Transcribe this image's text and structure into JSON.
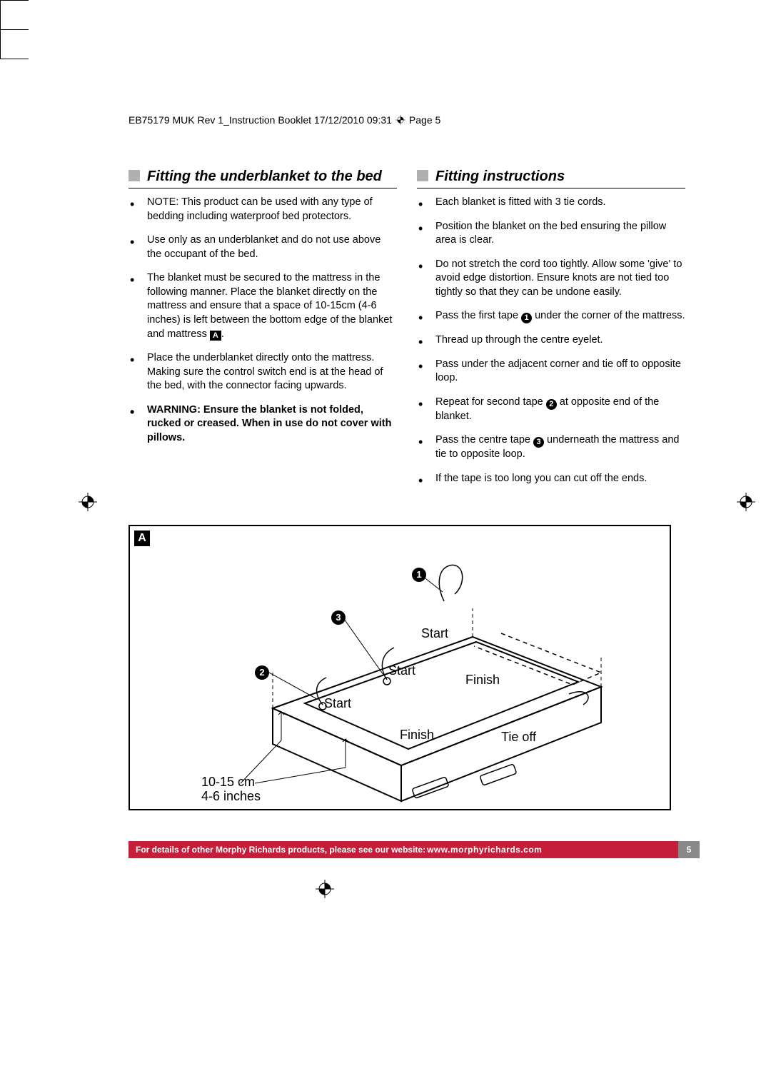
{
  "running_head": {
    "left": "EB75179 MUK Rev 1_Instruction Booklet  17/12/2010  09:31",
    "right": "Page 5"
  },
  "col1": {
    "heading": "Fitting the underblanket to the bed",
    "items": [
      {
        "text": "NOTE: This product can be used with any type of bedding including waterproof bed protectors."
      },
      {
        "text": "Use only as an underblanket and do not use above the occupant of the bed."
      },
      {
        "text_before": "The blanket must be secured to the mattress in the following manner. Place the blanket directly on the mattress and ensure that a space of 10-15cm (4-6 inches) is left between the bottom edge of the blanket and mattress ",
        "square": "A",
        "text_after": "."
      },
      {
        "text": "Place the underblanket directly onto the mattress. Making sure the control switch end is at the head of the bed, with the connector facing upwards."
      },
      {
        "text": "WARNING: Ensure the blanket is not folded, rucked or creased. When in use do not cover with pillows.",
        "bold": true
      }
    ]
  },
  "col2": {
    "heading": "Fitting instructions",
    "items": [
      {
        "text": "Each blanket is fitted with 3 tie cords."
      },
      {
        "text": "Position the blanket on the bed ensuring the pillow area is clear."
      },
      {
        "text": "Do not stretch the cord too tightly. Allow some 'give' to avoid edge distortion. Ensure knots are not tied too tightly so that they can be undone easily."
      },
      {
        "text_before": "Pass the first tape ",
        "circle": "1",
        "text_after": " under the corner of the mattress."
      },
      {
        "text": "Thread up through the centre eyelet."
      },
      {
        "text": "Pass under the adjacent corner and tie off to opposite loop."
      },
      {
        "text_before": "Repeat for second tape ",
        "circle": "2",
        "text_after": " at opposite end of the blanket."
      },
      {
        "text_before": "Pass the centre tape ",
        "circle": "3",
        "text_after": " underneath the mattress and tie to opposite loop."
      },
      {
        "text": "If the tape is too long you can cut off the ends."
      }
    ]
  },
  "diagram": {
    "labelA": "A",
    "c1": "1",
    "c2": "2",
    "c3": "3",
    "start1": "Start",
    "start2": "Start",
    "start3": "Start",
    "finish1": "Finish",
    "finish2": "Finish",
    "tieoff": "Tie off",
    "measure1": "10-15 cm",
    "measure2": "4-6 inches"
  },
  "footer": {
    "text_before": "For details of other Morphy Richards products, please see our website: ",
    "url": "www.morphyrichards.com",
    "page": "5"
  },
  "colors": {
    "accent_red": "#c41e3a",
    "gray_box": "#b0b0b0",
    "footer_gray": "#888888"
  }
}
